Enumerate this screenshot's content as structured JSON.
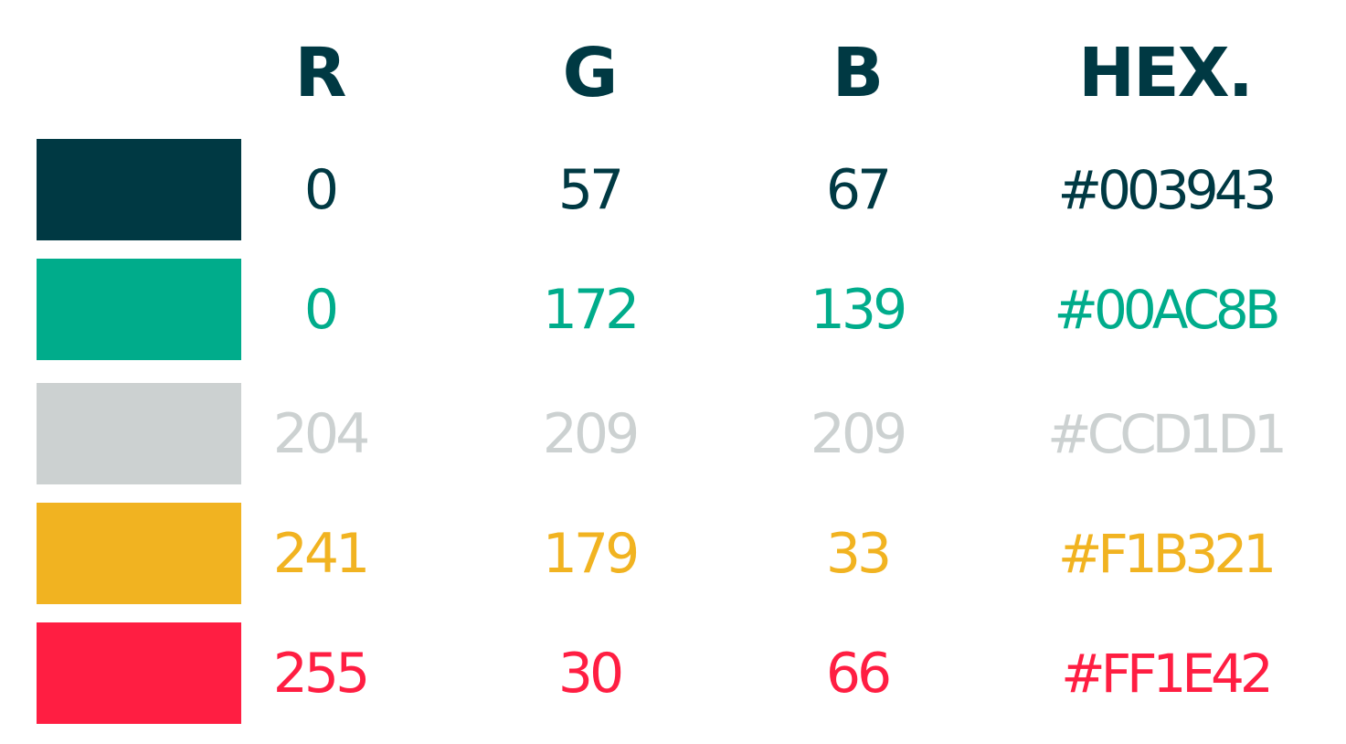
{
  "headers": {
    "r": "R",
    "g": "G",
    "b": "B",
    "hex": "HEX."
  },
  "rows": [
    {
      "r": "0",
      "g": "57",
      "b": "67",
      "hex": "#003943",
      "color": "#003943"
    },
    {
      "r": "0",
      "g": "172",
      "b": "139",
      "hex": "#00AC8B",
      "color": "#00AC8B"
    },
    {
      "r": "204",
      "g": "209",
      "b": "209",
      "hex": "#CCD1D1",
      "color": "#CCD1D1"
    },
    {
      "r": "241",
      "g": "179",
      "b": "33",
      "hex": "#F1B321",
      "color": "#F1B321"
    },
    {
      "r": "255",
      "g": "30",
      "b": "66",
      "hex": "#FF1E42",
      "color": "#FF1E42"
    }
  ]
}
